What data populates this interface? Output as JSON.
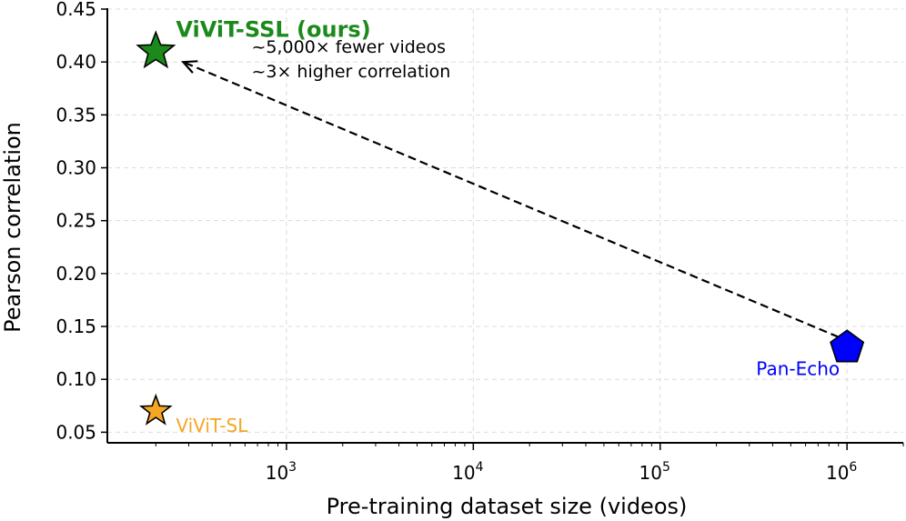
{
  "chart_data": {
    "type": "scatter",
    "xscale": "log",
    "xlabel": "Pre-training dataset size (videos)",
    "ylabel": "Pearson correlation",
    "xlim": [
      110,
      2000000
    ],
    "ylim": [
      0.04,
      0.45
    ],
    "yticks": [
      0.05,
      0.1,
      0.15,
      0.2,
      0.25,
      0.3,
      0.35,
      0.4,
      0.45
    ],
    "ytick_labels": [
      "0.05",
      "0.10",
      "0.15",
      "0.20",
      "0.25",
      "0.30",
      "0.35",
      "0.40",
      "0.45"
    ],
    "xticks": [
      1000,
      10000,
      100000,
      1000000
    ],
    "xtick_labels": [
      {
        "base": "10",
        "exp": "3"
      },
      {
        "base": "10",
        "exp": "4"
      },
      {
        "base": "10",
        "exp": "5"
      },
      {
        "base": "10",
        "exp": "6"
      }
    ],
    "grid": true,
    "points": [
      {
        "name": "ViViT-SSL (ours)",
        "x": 200,
        "y": 0.41,
        "marker": "star",
        "color": "#1b8a1b",
        "label_color": "#1b8a1b",
        "label_position": "upper-right"
      },
      {
        "name": "ViViT-SL",
        "x": 200,
        "y": 0.07,
        "marker": "star",
        "color": "#f5a623",
        "label_color": "#f5a623",
        "label_position": "lower-right"
      },
      {
        "name": "Pan-Echo",
        "x": 1000000,
        "y": 0.13,
        "marker": "pentagon",
        "color": "#0000ff",
        "label_color": "#0000ff",
        "label_position": "lower-left"
      }
    ],
    "annotation": {
      "lines": [
        "~5,000× fewer videos",
        "~3× higher correlation"
      ],
      "arrow_from": {
        "x": 900000,
        "y": 0.14
      },
      "arrow_to": {
        "x": 280,
        "y": 0.4
      },
      "text_anchor": {
        "x": 650,
        "y": 0.39
      }
    }
  }
}
